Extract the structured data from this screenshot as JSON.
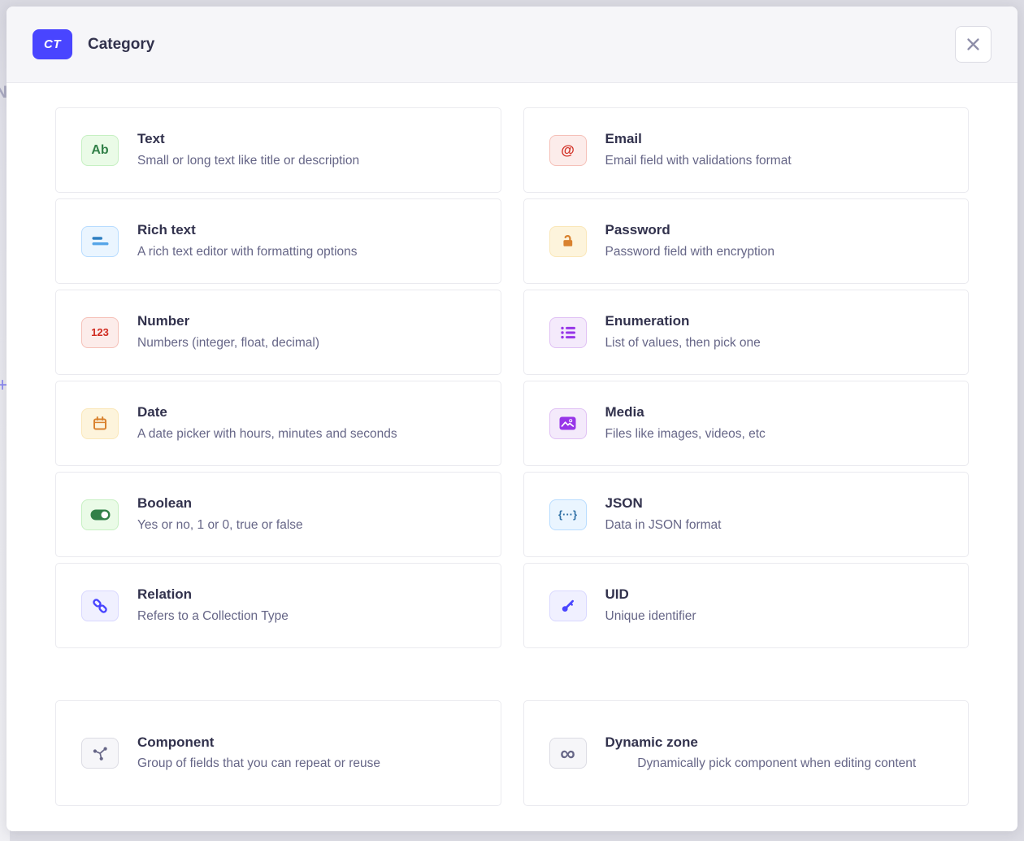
{
  "background_page": {
    "partial_letter": "N",
    "partial_plus": "+"
  },
  "modal": {
    "badge_label": "CT",
    "title": "Category",
    "colors": {
      "accent": "#4945FF",
      "title_text": "#32324D",
      "description_text": "#666687",
      "header_bg": "#F6F6F9",
      "card_border": "#EAEAEF"
    }
  },
  "field_groups": {
    "default": [
      {
        "label": "Text",
        "description": "Small or long text like title or description",
        "icon": "text-ab-icon",
        "glyph": "Ab",
        "glyph_size": 16,
        "style": {
          "bg": "#EAFBE7",
          "border": "#C6F0C2",
          "color": "#328048"
        }
      },
      {
        "label": "Email",
        "description": "Email field with validations format",
        "icon": "email-at-icon",
        "glyph": "@",
        "glyph_size": 17,
        "style": {
          "bg": "#FCECEA",
          "border": "#F5C0B8",
          "color": "#D02B20"
        }
      },
      {
        "label": "Rich text",
        "description": "A rich text editor with formatting options",
        "icon": "richtext-lines-icon",
        "style": {
          "bg": "#EAF5FF",
          "border": "#B8DCFF",
          "color": "#2D7EC1",
          "color2": "#55A5E8"
        }
      },
      {
        "label": "Password",
        "description": "Password field with encryption",
        "icon": "password-lock-icon",
        "style": {
          "bg": "#FDF4DC",
          "border": "#FAE7B9",
          "color": "#D9822F"
        }
      },
      {
        "label": "Number",
        "description": "Numbers (integer, float, decimal)",
        "icon": "number-123-icon",
        "glyph": "123",
        "glyph_size": 13,
        "style": {
          "bg": "#FCECEA",
          "border": "#F5C0B8",
          "color": "#D02B20"
        }
      },
      {
        "label": "Enumeration",
        "description": "List of values, then pick one",
        "icon": "enumeration-list-icon",
        "style": {
          "bg": "#F4EAFB",
          "border": "#E0C1F4",
          "color": "#9736E8"
        }
      },
      {
        "label": "Date",
        "description": "A date picker with hours, minutes and seconds",
        "icon": "date-calendar-icon",
        "style": {
          "bg": "#FDF4DC",
          "border": "#FAE7B9",
          "color": "#D9822F"
        }
      },
      {
        "label": "Media",
        "description": "Files like images, videos, etc",
        "icon": "media-picture-icon",
        "style": {
          "bg": "#F4EAFB",
          "border": "#E0C1F4",
          "color": "#9736E8"
        }
      },
      {
        "label": "Boolean",
        "description": "Yes or no, 1 or 0, true or false",
        "icon": "boolean-toggle-icon",
        "style": {
          "bg": "#EAFBE7",
          "border": "#C6F0C2",
          "color": "#328048"
        }
      },
      {
        "label": "JSON",
        "description": "Data in JSON format",
        "icon": "json-braces-icon",
        "glyph": "{···}",
        "glyph_size": 13,
        "style": {
          "bg": "#EAF5FF",
          "border": "#B8DCFF",
          "color": "#2E6FA5"
        }
      },
      {
        "label": "Relation",
        "description": "Refers to a Collection Type",
        "icon": "relation-chain-icon",
        "style": {
          "bg": "#F0F0FF",
          "border": "#D9D8FF",
          "color": "#4945FF"
        }
      },
      {
        "label": "UID",
        "description": "Unique identifier",
        "icon": "uid-key-icon",
        "style": {
          "bg": "#F0F0FF",
          "border": "#D9D8FF",
          "color": "#4945FF"
        }
      }
    ],
    "advanced": [
      {
        "label": "Component",
        "description": "Group of fields that you can repeat or reuse",
        "icon": "component-branch-icon",
        "style": {
          "bg": "#F6F6F9",
          "border": "#DCDCE4",
          "color": "#666687"
        }
      },
      {
        "label": "Dynamic zone",
        "description": "Dynamically pick component when editing content",
        "icon": "dynamiczone-infinity-icon",
        "glyph": "∞",
        "glyph_size": 26,
        "center_description": true,
        "style": {
          "bg": "#F6F6F9",
          "border": "#DCDCE4",
          "color": "#666687"
        }
      }
    ]
  }
}
